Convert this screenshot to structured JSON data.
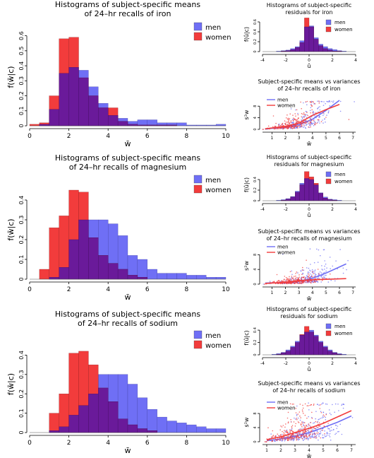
{
  "colors": {
    "men": "#6f6ff5",
    "women": "#f23c3c",
    "overlap": "#6a1a9a",
    "axis": "#000000"
  },
  "chart_data": [
    {
      "id": "hist-iron",
      "type": "bar",
      "title": "Histograms of subject-specific means\nof 24–hr recalls of iron",
      "xlabel": "w̄",
      "ylabel": "f(w̄|c)",
      "xlim": [
        0,
        10
      ],
      "ylim": [
        0,
        0.65
      ],
      "xticks": [
        0,
        2,
        4,
        6,
        8,
        10
      ],
      "yticks": [
        0,
        0.1,
        0.2,
        0.3,
        0.4,
        0.5,
        0.6
      ],
      "bin_width": 0.5,
      "series": [
        {
          "name": "men",
          "bin_starts": [
            0.5,
            1,
            1.5,
            2,
            2.5,
            3,
            3.5,
            4,
            4.5,
            5,
            5.5,
            6,
            6.5,
            7,
            7.5,
            8,
            8.5,
            9,
            9.5
          ],
          "values": [
            0.01,
            0.11,
            0.35,
            0.39,
            0.37,
            0.26,
            0.15,
            0.07,
            0.05,
            0.03,
            0.04,
            0.04,
            0.02,
            0.02,
            0.02,
            0.005,
            0.005,
            0.005,
            0.01
          ]
        },
        {
          "name": "women",
          "bin_starts": [
            0,
            0.5,
            1,
            1.5,
            2,
            2.5,
            3,
            3.5,
            4,
            4.5,
            5,
            5.5,
            6,
            6.5,
            7
          ],
          "values": [
            0.01,
            0.02,
            0.2,
            0.58,
            0.59,
            0.32,
            0.2,
            0.12,
            0.12,
            0.03,
            0.01,
            0.005,
            0.005,
            0.005,
            0.005
          ]
        }
      ],
      "legend": [
        "men",
        "women"
      ],
      "legend_position": "top-right"
    },
    {
      "id": "hist-magnesium",
      "type": "bar",
      "title": "Histograms of subject-specific means\nof 24–hr recalls of magnesium",
      "xlabel": "w̄",
      "ylabel": "f(w̄|c)",
      "xlim": [
        0,
        10
      ],
      "ylim": [
        0,
        0.5
      ],
      "xticks": [
        0,
        2,
        4,
        6,
        8,
        10
      ],
      "yticks": [
        0,
        0.1,
        0.2,
        0.3,
        0.4
      ],
      "bin_width": 0.5,
      "series": [
        {
          "name": "men",
          "bin_starts": [
            1,
            1.5,
            2,
            2.5,
            3,
            3.5,
            4,
            4.5,
            5,
            5.5,
            6,
            6.5,
            7,
            7.5,
            8,
            8.5,
            9,
            9.5
          ],
          "values": [
            0.01,
            0.06,
            0.2,
            0.3,
            0.3,
            0.3,
            0.28,
            0.22,
            0.12,
            0.1,
            0.05,
            0.03,
            0.03,
            0.03,
            0.02,
            0.02,
            0.01,
            0.01
          ]
        },
        {
          "name": "women",
          "bin_starts": [
            0.5,
            1,
            1.5,
            2,
            2.5,
            3,
            3.5,
            4,
            4.5,
            5,
            5.5
          ],
          "values": [
            0.05,
            0.26,
            0.32,
            0.45,
            0.44,
            0.21,
            0.12,
            0.08,
            0.05,
            0.02,
            0.01
          ]
        }
      ],
      "legend": [
        "men",
        "women"
      ],
      "legend_position": "top-right"
    },
    {
      "id": "hist-sodium",
      "type": "bar",
      "title": "Histograms of subject-specific means\nof 24–hr recalls of sodium",
      "xlabel": "w̄",
      "ylabel": "f(w̄|c)",
      "xlim": [
        0,
        10
      ],
      "ylim": [
        0,
        0.5
      ],
      "xticks": [
        0,
        2,
        4,
        6,
        8,
        10
      ],
      "yticks": [
        0,
        0.1,
        0.2,
        0.3,
        0.4
      ],
      "bin_width": 0.5,
      "series": [
        {
          "name": "men",
          "bin_starts": [
            1,
            1.5,
            2,
            2.5,
            3,
            3.5,
            4,
            4.5,
            5,
            5.5,
            6,
            6.5,
            7,
            7.5,
            8,
            8.5,
            9,
            9.5
          ],
          "values": [
            0.01,
            0.03,
            0.09,
            0.14,
            0.2,
            0.3,
            0.3,
            0.3,
            0.25,
            0.18,
            0.12,
            0.08,
            0.06,
            0.05,
            0.04,
            0.03,
            0.02,
            0.02
          ]
        },
        {
          "name": "women",
          "bin_starts": [
            1,
            1.5,
            2,
            2.5,
            3,
            3.5,
            4,
            4.5,
            5,
            5.5,
            6
          ],
          "values": [
            0.1,
            0.2,
            0.41,
            0.42,
            0.35,
            0.23,
            0.16,
            0.07,
            0.04,
            0.02,
            0.01
          ]
        }
      ],
      "legend": [
        "men",
        "women"
      ],
      "legend_position": "top-right"
    },
    {
      "id": "resid-iron",
      "type": "bar",
      "title": "Histograms of subject-specific\nresiduals for iron",
      "xlabel": "û",
      "ylabel": "f(û|c)",
      "xlim": [
        -4,
        4
      ],
      "ylim": [
        0,
        0.7
      ],
      "xticks": [
        -4,
        -2,
        0,
        2,
        4
      ],
      "yticks": [
        0,
        0.2,
        0.4,
        0.6
      ],
      "bin_width": 0.4,
      "series": [
        {
          "name": "men",
          "bin_starts": [
            -2.8,
            -2.4,
            -2,
            -1.6,
            -1.2,
            -0.8,
            -0.4,
            0,
            0.4,
            0.8,
            1.2,
            1.6,
            2,
            2.4,
            2.8
          ],
          "values": [
            0.01,
            0.02,
            0.03,
            0.06,
            0.1,
            0.22,
            0.5,
            0.52,
            0.28,
            0.15,
            0.1,
            0.06,
            0.04,
            0.02,
            0.01
          ]
        },
        {
          "name": "women",
          "bin_starts": [
            -2.4,
            -2,
            -1.6,
            -1.2,
            -0.8,
            -0.4,
            0,
            0.4,
            0.8,
            1.2,
            1.6,
            2,
            2.4
          ],
          "values": [
            0.01,
            0.02,
            0.04,
            0.08,
            0.18,
            0.68,
            0.5,
            0.25,
            0.12,
            0.06,
            0.03,
            0.01,
            0.01
          ]
        }
      ],
      "legend": [
        "men",
        "women"
      ],
      "legend_position": "top-right"
    },
    {
      "id": "scatter-iron",
      "type": "scatter",
      "title": "Subject-specific means vs variances\nof 24–hr recalls of iron",
      "xlabel": "w̄",
      "ylabel": "s²w",
      "xlim": [
        0.3,
        7.2
      ],
      "ylim": [
        0,
        10
      ],
      "xticks": [
        1,
        2,
        3,
        4,
        5,
        6,
        7
      ],
      "yticks": [
        0,
        4,
        8
      ],
      "legend": [
        "men",
        "women"
      ],
      "legend_position": "top-left",
      "series": [
        {
          "name": "men",
          "trend": [
            [
              0.5,
              0.1
            ],
            [
              2,
              0.8
            ],
            [
              3,
              1.6
            ],
            [
              4,
              3.5
            ],
            [
              5,
              6.5
            ],
            [
              6,
              10
            ]
          ],
          "seed": 11,
          "cloud": {
            "mu": 3.3,
            "sd": 1.2,
            "count": 260
          }
        },
        {
          "name": "women",
          "trend": [
            [
              0.5,
              0.2
            ],
            [
              2,
              1
            ],
            [
              3,
              2.2
            ],
            [
              4,
              4.8
            ],
            [
              5,
              6.8
            ],
            [
              6,
              8.6
            ]
          ],
          "seed": 23,
          "cloud": {
            "mu": 2.6,
            "sd": 1.0,
            "count": 260
          }
        }
      ]
    },
    {
      "id": "resid-magnesium",
      "type": "bar",
      "title": "Histograms of subject-specific\nresiduals for magnesium",
      "xlabel": "û",
      "ylabel": "f(û|c)",
      "xlim": [
        -4,
        4
      ],
      "ylim": [
        0,
        0.6
      ],
      "xticks": [
        -4,
        -2,
        0,
        2,
        4
      ],
      "yticks": [
        0,
        0.2,
        0.4
      ],
      "bin_width": 0.4,
      "series": [
        {
          "name": "men",
          "bin_starts": [
            -2.8,
            -2.4,
            -2,
            -1.6,
            -1.2,
            -0.8,
            -0.4,
            0,
            0.4,
            0.8,
            1.2,
            1.6,
            2,
            2.4
          ],
          "values": [
            0.01,
            0.02,
            0.04,
            0.08,
            0.18,
            0.33,
            0.42,
            0.4,
            0.3,
            0.15,
            0.07,
            0.03,
            0.02,
            0.01
          ]
        },
        {
          "name": "women",
          "bin_starts": [
            -2.4,
            -2,
            -1.6,
            -1.2,
            -0.8,
            -0.4,
            0,
            0.4,
            0.8,
            1.2,
            1.6,
            2
          ],
          "values": [
            0.01,
            0.03,
            0.07,
            0.16,
            0.3,
            0.55,
            0.45,
            0.33,
            0.14,
            0.05,
            0.02,
            0.01
          ]
        }
      ],
      "legend": [
        "men",
        "women"
      ],
      "legend_position": "top-right"
    },
    {
      "id": "scatter-magnesium",
      "type": "scatter",
      "title": "Subject-specific means vs variances\nof 24–hr recalls of magnesium",
      "xlabel": "w̄",
      "ylabel": "s²w",
      "xlim": [
        0.3,
        7.2
      ],
      "ylim": [
        0,
        10
      ],
      "xticks": [
        1,
        2,
        3,
        4,
        5,
        6,
        7
      ],
      "yticks": [
        0,
        4,
        8
      ],
      "legend": [
        "men",
        "women"
      ],
      "legend_position": "top-left",
      "series": [
        {
          "name": "men",
          "trend": [
            [
              0.5,
              0.3
            ],
            [
              2,
              0.4
            ],
            [
              3,
              0.8
            ],
            [
              4,
              1.6
            ],
            [
              5,
              3
            ],
            [
              6.5,
              5.5
            ]
          ],
          "seed": 31,
          "cloud": {
            "mu": 3.5,
            "sd": 1.1,
            "count": 260
          }
        },
        {
          "name": "women",
          "trend": [
            [
              0.5,
              0.2
            ],
            [
              2,
              0.5
            ],
            [
              3,
              0.9
            ],
            [
              4,
              1.2
            ],
            [
              5,
              1.3
            ],
            [
              6.5,
              1.5
            ]
          ],
          "seed": 47,
          "cloud": {
            "mu": 2.7,
            "sd": 0.9,
            "count": 260
          }
        }
      ]
    },
    {
      "id": "resid-sodium",
      "type": "bar",
      "title": "Histograms of subject-specific\nresiduals for sodium",
      "xlabel": "û",
      "ylabel": "f(û|c)",
      "xlim": [
        -4,
        4
      ],
      "ylim": [
        0,
        0.55
      ],
      "xticks": [
        -4,
        -2,
        0,
        2,
        4
      ],
      "yticks": [
        0,
        0.2,
        0.4
      ],
      "bin_width": 0.4,
      "series": [
        {
          "name": "men",
          "bin_starts": [
            -3.2,
            -2.8,
            -2.4,
            -2,
            -1.6,
            -1.2,
            -0.8,
            -0.4,
            0,
            0.4,
            0.8,
            1.2,
            1.6,
            2,
            2.4,
            2.8
          ],
          "values": [
            0.01,
            0.02,
            0.04,
            0.08,
            0.14,
            0.22,
            0.32,
            0.37,
            0.4,
            0.32,
            0.22,
            0.14,
            0.08,
            0.04,
            0.02,
            0.01
          ]
        },
        {
          "name": "women",
          "bin_starts": [
            -2.8,
            -2.4,
            -2,
            -1.6,
            -1.2,
            -0.8,
            -0.4,
            0,
            0.4,
            0.8,
            1.2,
            1.6,
            2,
            2.4
          ],
          "values": [
            0.01,
            0.03,
            0.06,
            0.12,
            0.2,
            0.33,
            0.46,
            0.37,
            0.3,
            0.2,
            0.12,
            0.06,
            0.03,
            0.01
          ]
        }
      ],
      "legend": [
        "men",
        "women"
      ],
      "legend_position": "top-right"
    },
    {
      "id": "scatter-sodium",
      "type": "scatter",
      "title": "Subject-specific means vs variances\nof 24–hr recalls of sodium",
      "xlabel": "w̄",
      "ylabel": "s²w",
      "xlim": [
        0.7,
        7.3
      ],
      "ylim": [
        0,
        11
      ],
      "xticks": [
        1,
        2,
        3,
        4,
        5,
        6,
        7
      ],
      "yticks": [
        0,
        4,
        8
      ],
      "legend": [
        "men",
        "women"
      ],
      "legend_position": "top-left",
      "series": [
        {
          "name": "men",
          "trend": [
            [
              1,
              0.3
            ],
            [
              2,
              0.8
            ],
            [
              3,
              1.6
            ],
            [
              4,
              2.6
            ],
            [
              5,
              4
            ],
            [
              6,
              5.5
            ],
            [
              7,
              7.3
            ]
          ],
          "seed": 53,
          "cloud": {
            "mu": 4.0,
            "sd": 1.3,
            "count": 300
          }
        },
        {
          "name": "women",
          "trend": [
            [
              1,
              0.6
            ],
            [
              2,
              1.4
            ],
            [
              3,
              2.6
            ],
            [
              4,
              3.8
            ],
            [
              5,
              5.2
            ],
            [
              6,
              7
            ],
            [
              7,
              8.8
            ]
          ],
          "seed": 67,
          "cloud": {
            "mu": 3.1,
            "sd": 1.1,
            "count": 300
          }
        }
      ]
    }
  ]
}
